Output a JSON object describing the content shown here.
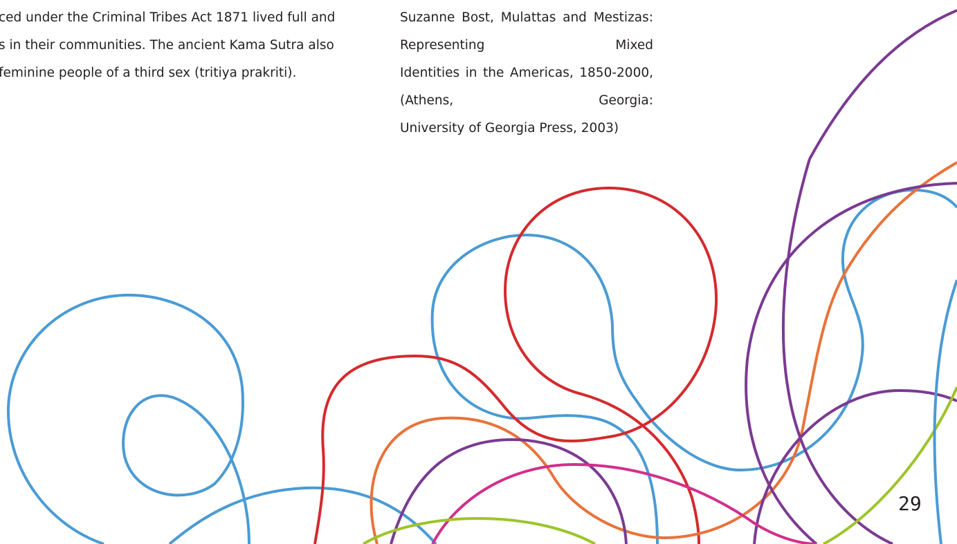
{
  "left_column": {
    "lines": [
      "ced under the Criminal Tribes Act 1871 lived full and",
      "s in their communities. The ancient Kama Sutra also",
      "feminine people of a third sex (tritiya prakriti)."
    ]
  },
  "right_column": {
    "lines": [
      "Suzanne Bost, Mulattas and Mestizas: Representing Mixed",
      "Identities in the Americas, 1850-2000, (Athens, Georgia:",
      "University of Georgia Press, 2003)"
    ]
  },
  "page_number": "29"
}
